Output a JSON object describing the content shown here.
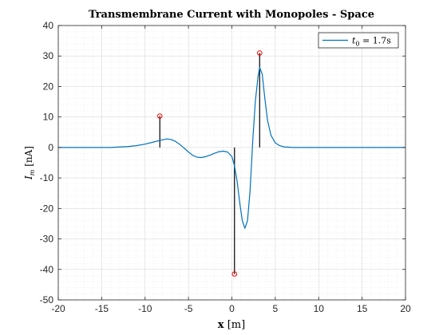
{
  "chart_data": {
    "type": "line",
    "title": "Transmembrane Current with Monopoles - Space",
    "xlabel": {
      "main": "x",
      "unit": "[m]"
    },
    "ylabel": {
      "sym": "I",
      "sub": "m",
      "unit": "[nA]"
    },
    "xlim": [
      -20,
      20
    ],
    "ylim": [
      -50,
      40
    ],
    "xticks": [
      -20,
      -15,
      -10,
      -5,
      0,
      5,
      10,
      15,
      20
    ],
    "yticks": [
      -50,
      -40,
      -30,
      -20,
      -10,
      0,
      10,
      20,
      30,
      40
    ],
    "grid": true,
    "minor_grid": true,
    "legend_position": "top-right",
    "legend": {
      "sym": "t",
      "sub": "0",
      "rest": " = 1.7s"
    },
    "colors": {
      "line": "#0072BD",
      "stem": "#000000",
      "marker": "#FF0000",
      "grid": "#d9d9d9"
    },
    "series": [
      {
        "x": [
          -20,
          -14,
          -12,
          -11,
          -10,
          -9,
          -8.3,
          -7.5,
          -7,
          -6.5,
          -6,
          -5.5,
          -5,
          -4.5,
          -4,
          -3.5,
          -3,
          -2.5,
          -2,
          -1.5,
          -1,
          -0.5,
          0,
          0.3,
          0.6,
          0.9,
          1.2,
          1.5,
          1.8,
          2.1,
          2.4,
          2.7,
          3.0,
          3.2,
          3.5,
          3.8,
          4.1,
          4.5,
          5,
          5.5,
          6,
          7,
          20
        ],
        "y": [
          0,
          0,
          0.3,
          0.6,
          1.1,
          1.8,
          2.3,
          2.8,
          2.6,
          2.0,
          1.0,
          -0.2,
          -1.5,
          -2.6,
          -3.2,
          -3.3,
          -3.0,
          -2.5,
          -1.9,
          -1.4,
          -1.2,
          -1.5,
          -3,
          -6,
          -11,
          -18,
          -24,
          -26.5,
          -24,
          -14,
          2,
          15,
          23,
          26.3,
          24,
          16,
          9,
          4,
          1.5,
          0.6,
          0.2,
          0,
          0
        ]
      }
    ],
    "stems": [
      {
        "x": -8.3,
        "y": 10.3
      },
      {
        "x": 0.3,
        "y": -41.5
      },
      {
        "x": 3.2,
        "y": 31
      }
    ]
  }
}
